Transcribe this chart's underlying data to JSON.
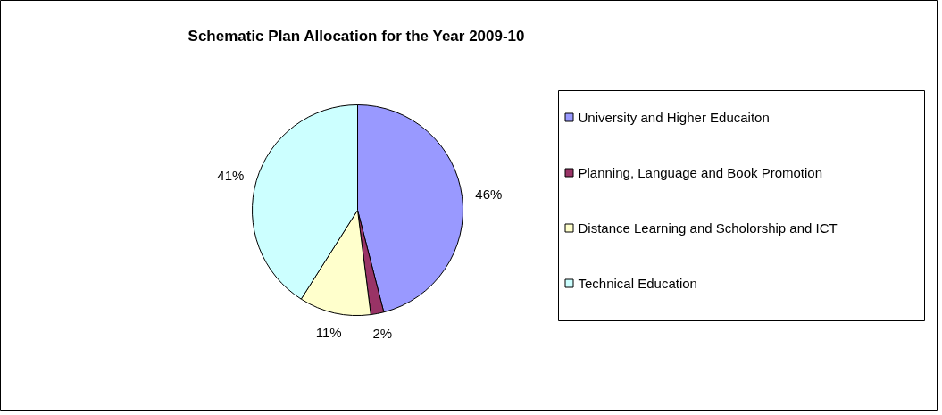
{
  "chart_data": {
    "type": "pie",
    "title": "Schematic Plan Allocation for the Year 2009-10",
    "categories": [
      "University and Higher Educaiton",
      "Planning, Language and Book Promotion",
      "Distance Learning and Scholorship and ICT",
      "Technical Education"
    ],
    "values": [
      46,
      2,
      11,
      41
    ],
    "colors": [
      "#9999ff",
      "#993366",
      "#ffffcc",
      "#ccffff"
    ],
    "value_labels": [
      "46%",
      "2%",
      "11%",
      "41%"
    ],
    "legend": "right"
  }
}
